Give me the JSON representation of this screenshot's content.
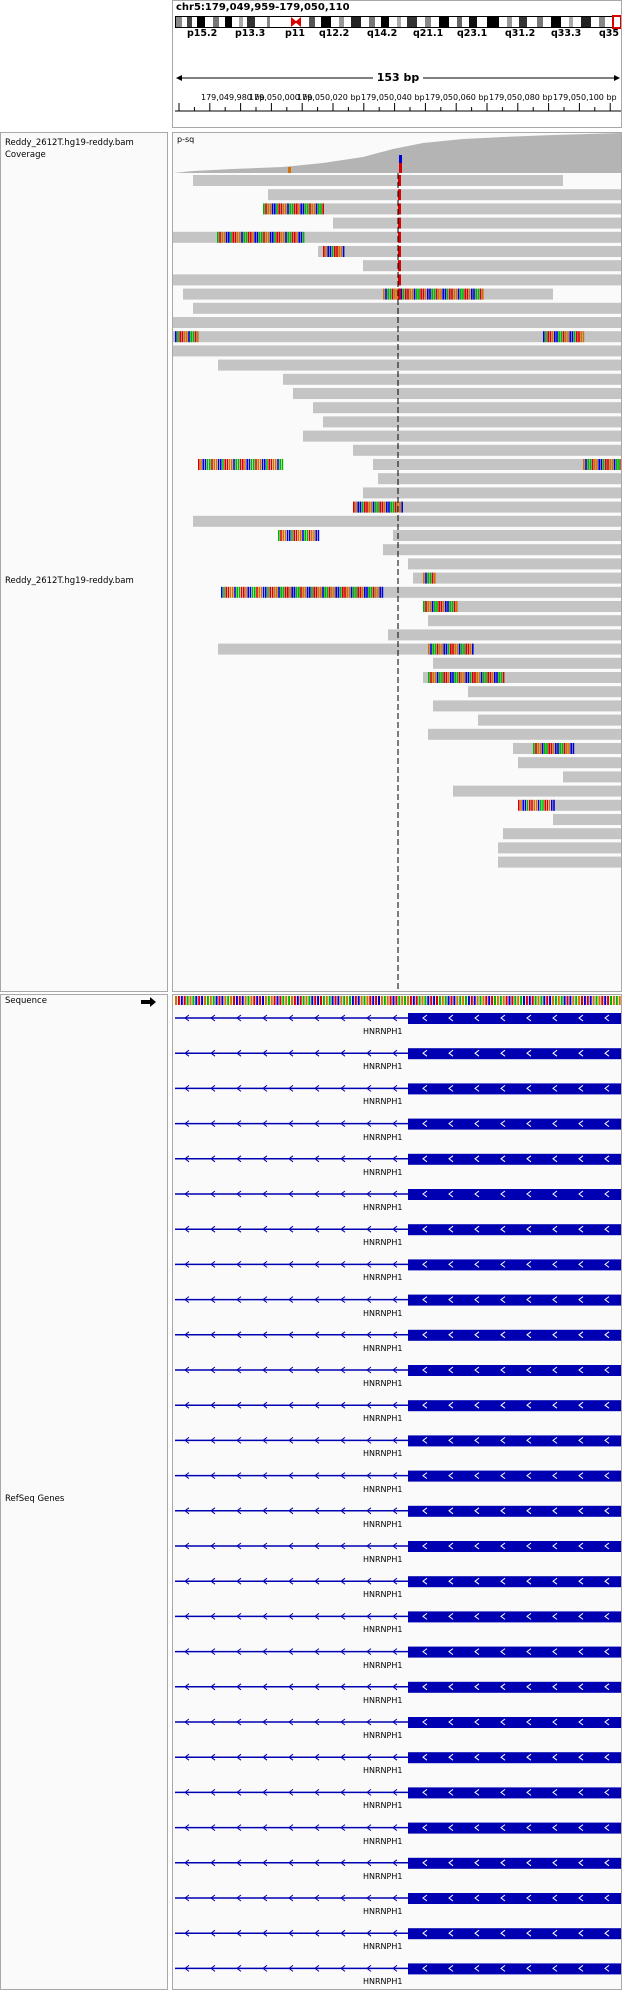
{
  "header": {
    "locus": "chr5:179,049,959-179,050,110",
    "width_label": "153 bp",
    "cytobands": [
      "p15.2",
      "p13.3",
      "p11",
      "q12.2",
      "q14.2",
      "q21.1",
      "q23.1",
      "q31.2",
      "q33.3",
      "q35"
    ],
    "ruler_ticks": [
      "179,049,980 bp",
      "179,050,000 bp",
      "179,050,020 bp",
      "179,050,040 bp",
      "179,050,060 bp",
      "179,050,080 bp",
      "179,050,100 bp"
    ]
  },
  "tracks": {
    "coverage_label": "Reddy_2612T.hg19-reddy.bam Coverage",
    "coverage_tag": "p-sq",
    "alignment_label": "Reddy_2612T.hg19-reddy.bam",
    "sequence_label": "Sequence",
    "refseq_label": "RefSeq Genes",
    "gene_name": "HNRNPH1",
    "gene_row_count": 28
  },
  "colors": {
    "read": "#c4c4c4",
    "coverage": "#b4b4b4",
    "gene": "#0000b2",
    "mismatch_a": "#00b400",
    "mismatch_c": "#0000d8",
    "mismatch_g": "#d17105",
    "mismatch_t": "#d80000"
  }
}
